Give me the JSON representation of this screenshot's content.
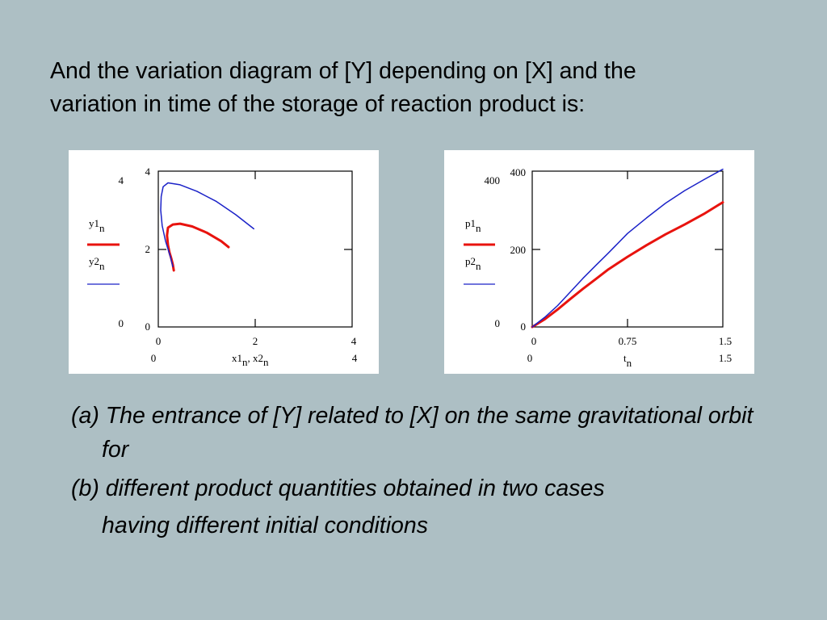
{
  "slide": {
    "heading_line1": "And the variation diagram of [Y] depending on [X] and the",
    "heading_line2": "variation in time of the storage of reaction product is:",
    "caption_a": "(a) The entrance of  [Y] related to [X] on the same gravitational orbit for",
    "caption_b": "(b) different product quantities obtained in two cases",
    "caption_b_cont": "having different initial conditions"
  },
  "colors": {
    "background": "#adbfc4",
    "series_red": "#e8130e",
    "series_blue": "#1b22c8"
  },
  "chart_data": [
    {
      "type": "line",
      "xlim": [
        0,
        4
      ],
      "ylim": [
        0,
        4
      ],
      "x_ticks": [
        "0",
        "2",
        "4"
      ],
      "y_ticks": [
        "0",
        "2",
        "4"
      ],
      "x_range_labels": [
        "0",
        "4"
      ],
      "y_range_labels": [
        "0",
        "4"
      ],
      "xlabel": "x1n, x2n",
      "xlabel_parts": {
        "a": "x1",
        "a_sub": "n",
        "sep": ", ",
        "b": "x2",
        "b_sub": "n"
      },
      "legend": [
        {
          "name": "y1",
          "sub": "n",
          "color": "#e8130e"
        },
        {
          "name": "y2",
          "sub": "n",
          "color": "#1b22c8"
        }
      ],
      "series": [
        {
          "name": "y1",
          "color": "#e8130e",
          "width": 3,
          "x": [
            0.32,
            0.3,
            0.27,
            0.23,
            0.2,
            0.18,
            0.2,
            0.3,
            0.45,
            0.7,
            1.0,
            1.3,
            1.45
          ],
          "y": [
            1.45,
            1.6,
            1.75,
            1.92,
            2.1,
            2.35,
            2.55,
            2.63,
            2.65,
            2.58,
            2.42,
            2.2,
            2.05
          ]
        },
        {
          "name": "y2",
          "color": "#1b22c8",
          "width": 1.5,
          "x": [
            0.3,
            0.25,
            0.15,
            0.08,
            0.05,
            0.06,
            0.1,
            0.2,
            0.45,
            0.8,
            1.2,
            1.6,
            1.97
          ],
          "y": [
            1.55,
            1.8,
            2.2,
            2.6,
            3.0,
            3.35,
            3.6,
            3.7,
            3.65,
            3.48,
            3.22,
            2.88,
            2.52
          ]
        }
      ]
    },
    {
      "type": "line",
      "xlim": [
        0,
        1.5
      ],
      "ylim": [
        0,
        400
      ],
      "x_ticks": [
        "0",
        "0.75",
        "1.5"
      ],
      "y_ticks": [
        "0",
        "200",
        "400"
      ],
      "x_range_labels": [
        "0",
        "1.5"
      ],
      "y_range_labels": [
        "0",
        "400"
      ],
      "xlabel": "tn",
      "xlabel_parts": {
        "a": "t",
        "a_sub": "n"
      },
      "legend": [
        {
          "name": "p1",
          "sub": "n",
          "color": "#e8130e"
        },
        {
          "name": "p2",
          "sub": "n",
          "color": "#1b22c8"
        }
      ],
      "series": [
        {
          "name": "p1",
          "color": "#e8130e",
          "width": 3,
          "x": [
            0,
            0.1,
            0.2,
            0.3,
            0.4,
            0.5,
            0.6,
            0.75,
            0.9,
            1.05,
            1.2,
            1.35,
            1.5
          ],
          "y": [
            0,
            20,
            45,
            72,
            98,
            123,
            148,
            180,
            210,
            238,
            263,
            290,
            320
          ]
        },
        {
          "name": "p2",
          "color": "#1b22c8",
          "width": 1.5,
          "x": [
            0,
            0.1,
            0.2,
            0.3,
            0.4,
            0.5,
            0.6,
            0.75,
            0.9,
            1.05,
            1.2,
            1.35,
            1.5
          ],
          "y": [
            0,
            25,
            55,
            90,
            125,
            158,
            190,
            240,
            280,
            318,
            350,
            378,
            405
          ]
        }
      ]
    }
  ]
}
